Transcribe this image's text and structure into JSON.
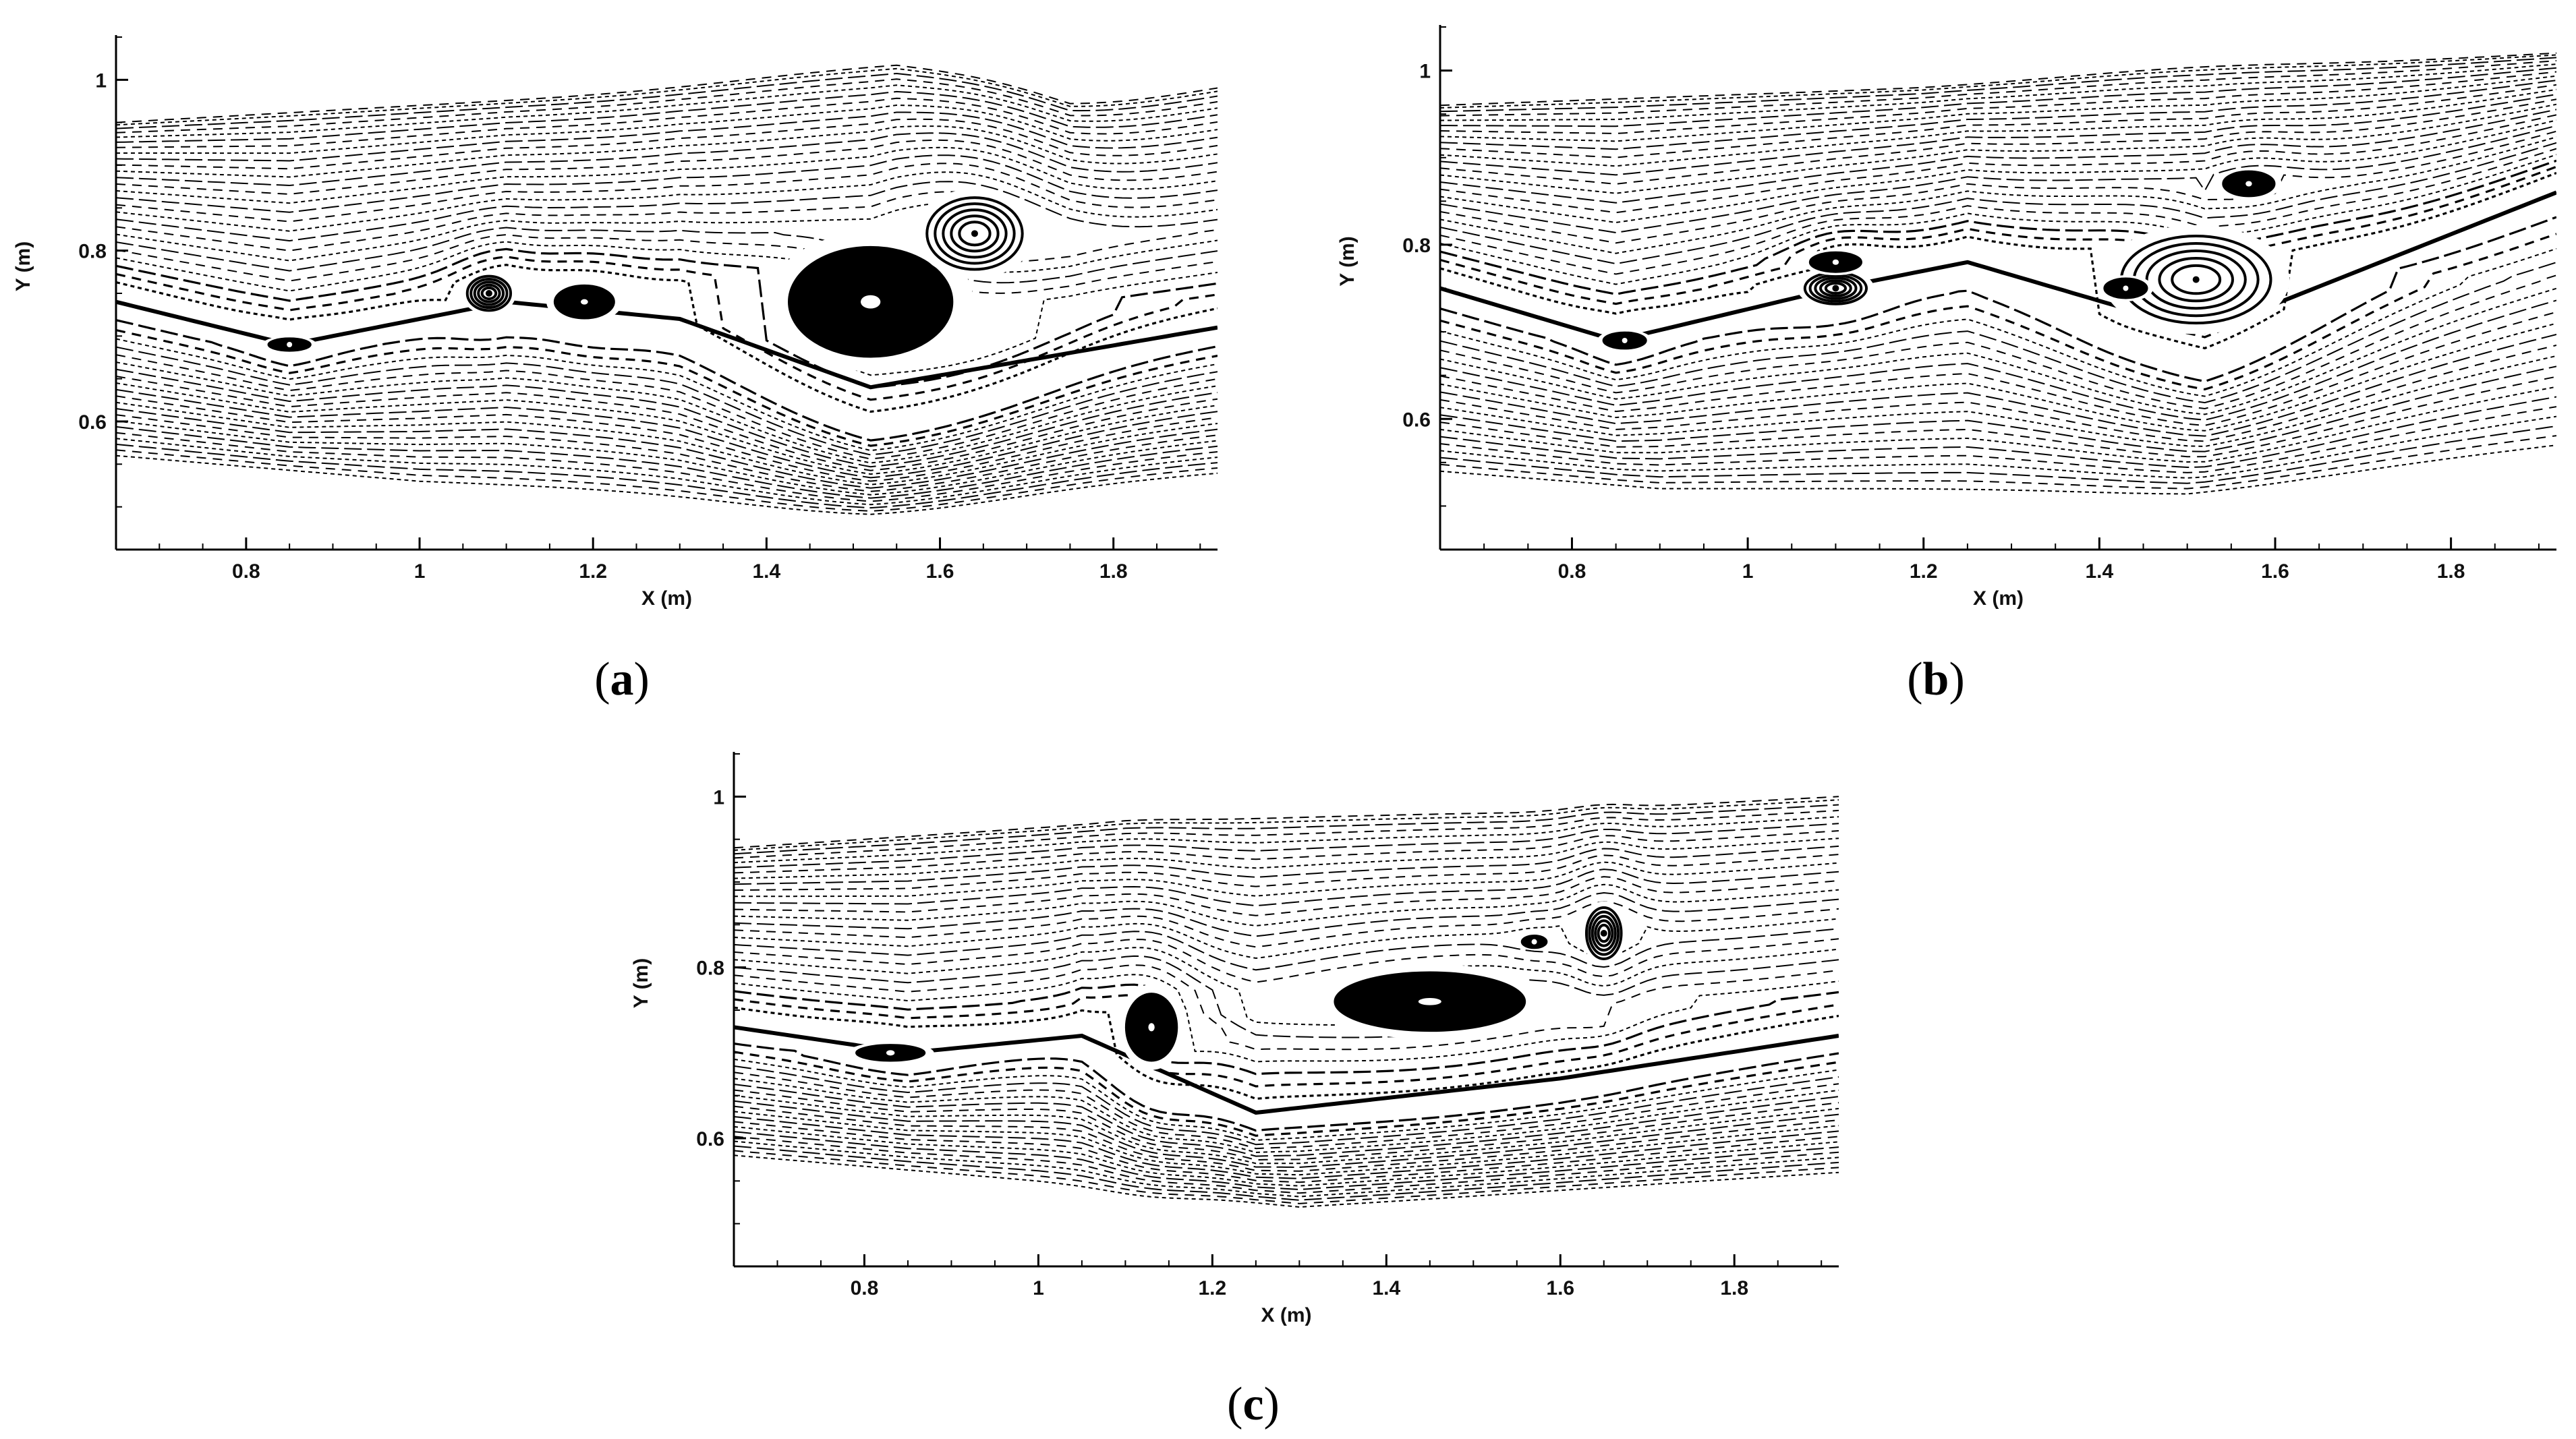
{
  "chart_data": [
    {
      "type": "scatter",
      "panel_label": [
        "(",
        "a",
        ")"
      ],
      "xlabel": "X (m)",
      "ylabel": "Y (m)",
      "xlim": [
        0.65,
        1.92
      ],
      "ylim": [
        0.45,
        1.05
      ],
      "xticks": [
        "0.8",
        "1",
        "1.2",
        "1.4",
        "1.6",
        "1.8"
      ],
      "yticks": [
        "0.6",
        "0.8",
        "1"
      ],
      "grid": false,
      "top_surface_y": [
        [
          0.65,
          0.95
        ],
        [
          1.0,
          0.97
        ],
        [
          1.55,
          1.0
        ],
        [
          1.75,
          0.96
        ],
        [
          1.92,
          0.99
        ]
      ],
      "wake_band": [
        [
          0.65,
          0.74
        ],
        [
          0.85,
          0.69
        ],
        [
          1.1,
          0.74
        ],
        [
          1.3,
          0.72
        ],
        [
          1.52,
          0.64
        ],
        [
          1.92,
          0.71
        ]
      ],
      "bottom_stream_y": [
        [
          0.65,
          0.56
        ],
        [
          1.0,
          0.53
        ],
        [
          1.52,
          0.51
        ],
        [
          1.92,
          0.54
        ]
      ],
      "vortices": [
        {
          "x": 0.85,
          "y": 0.69,
          "rx": 0.025,
          "ry": 0.008,
          "solid": true
        },
        {
          "x": 1.08,
          "y": 0.75,
          "rx": 0.025,
          "ry": 0.02,
          "solid": false
        },
        {
          "x": 1.19,
          "y": 0.74,
          "rx": 0.035,
          "ry": 0.02,
          "solid": true
        },
        {
          "x": 1.52,
          "y": 0.74,
          "rx": 0.095,
          "ry": 0.065,
          "solid": true
        },
        {
          "x": 1.64,
          "y": 0.82,
          "rx": 0.055,
          "ry": 0.042,
          "solid": false
        }
      ]
    },
    {
      "type": "scatter",
      "panel_label": [
        "(",
        "b",
        ")"
      ],
      "xlabel": "X (m)",
      "ylabel": "Y (m)",
      "xlim": [
        0.65,
        1.92
      ],
      "ylim": [
        0.45,
        1.05
      ],
      "xticks": [
        "0.8",
        "1",
        "1.2",
        "1.4",
        "1.6",
        "1.8"
      ],
      "yticks": [
        "0.6",
        "0.8",
        "1"
      ],
      "grid": false,
      "top_surface_y": [
        [
          0.65,
          0.96
        ],
        [
          1.2,
          0.98
        ],
        [
          1.92,
          1.02
        ]
      ],
      "wake_band": [
        [
          0.65,
          0.75
        ],
        [
          0.85,
          0.69
        ],
        [
          1.1,
          0.75
        ],
        [
          1.25,
          0.78
        ],
        [
          1.52,
          0.7
        ],
        [
          1.92,
          0.86
        ]
      ],
      "bottom_stream_y": [
        [
          0.65,
          0.54
        ],
        [
          0.9,
          0.52
        ],
        [
          1.2,
          0.52
        ],
        [
          1.5,
          0.52
        ],
        [
          1.92,
          0.57
        ]
      ],
      "vortices": [
        {
          "x": 0.86,
          "y": 0.69,
          "rx": 0.025,
          "ry": 0.01,
          "solid": true
        },
        {
          "x": 1.1,
          "y": 0.75,
          "rx": 0.035,
          "ry": 0.018,
          "solid": false
        },
        {
          "x": 1.1,
          "y": 0.78,
          "rx": 0.03,
          "ry": 0.012,
          "solid": true
        },
        {
          "x": 1.51,
          "y": 0.76,
          "rx": 0.085,
          "ry": 0.05,
          "solid": false
        },
        {
          "x": 1.57,
          "y": 0.87,
          "rx": 0.03,
          "ry": 0.015,
          "solid": true
        },
        {
          "x": 1.43,
          "y": 0.75,
          "rx": 0.025,
          "ry": 0.012,
          "solid": true
        }
      ]
    },
    {
      "type": "scatter",
      "panel_label": [
        "(",
        "c",
        ")"
      ],
      "xlabel": "X (m)",
      "ylabel": "Y (m)",
      "xlim": [
        0.65,
        1.92
      ],
      "ylim": [
        0.45,
        1.05
      ],
      "xticks": [
        "0.8",
        "1",
        "1.2",
        "1.4",
        "1.6",
        "1.8"
      ],
      "yticks": [
        "0.6",
        "0.8",
        "1"
      ],
      "grid": false,
      "top_surface_y": [
        [
          0.65,
          0.94
        ],
        [
          1.1,
          0.97
        ],
        [
          1.55,
          0.98
        ],
        [
          1.92,
          1.0
        ]
      ],
      "wake_band": [
        [
          0.65,
          0.73
        ],
        [
          0.85,
          0.7
        ],
        [
          1.05,
          0.72
        ],
        [
          1.25,
          0.63
        ],
        [
          1.6,
          0.67
        ],
        [
          1.92,
          0.72
        ]
      ],
      "bottom_stream_y": [
        [
          0.65,
          0.58
        ],
        [
          1.0,
          0.55
        ],
        [
          1.3,
          0.52
        ],
        [
          1.6,
          0.54
        ],
        [
          1.92,
          0.56
        ]
      ],
      "vortices": [
        {
          "x": 0.83,
          "y": 0.7,
          "rx": 0.04,
          "ry": 0.01,
          "solid": true
        },
        {
          "x": 1.13,
          "y": 0.73,
          "rx": 0.03,
          "ry": 0.04,
          "solid": true
        },
        {
          "x": 1.45,
          "y": 0.76,
          "rx": 0.11,
          "ry": 0.035,
          "solid": true
        },
        {
          "x": 1.57,
          "y": 0.83,
          "rx": 0.015,
          "ry": 0.008,
          "solid": true
        },
        {
          "x": 1.65,
          "y": 0.84,
          "rx": 0.02,
          "ry": 0.03,
          "solid": false
        }
      ]
    }
  ]
}
